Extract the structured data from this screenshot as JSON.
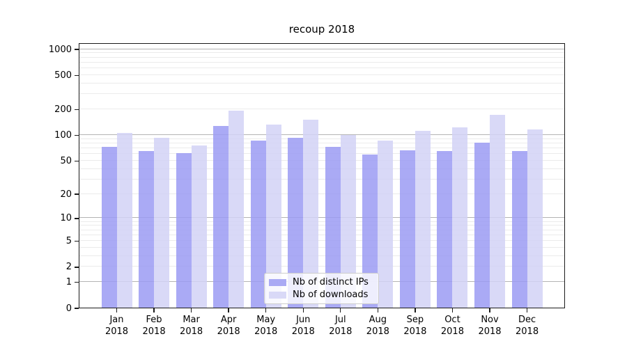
{
  "chart_data": {
    "type": "bar",
    "title": "recoup 2018",
    "categories": [
      "Jan",
      "Feb",
      "Mar",
      "Apr",
      "May",
      "Jun",
      "Jul",
      "Aug",
      "Sep",
      "Oct",
      "Nov",
      "Dec"
    ],
    "category_year": "2018",
    "series": [
      {
        "name": "Nb of distinct IPs",
        "color": "rgba(155,155,243,0.85)",
        "legend_color": "#aaaaf4",
        "values": [
          72,
          64,
          61,
          127,
          86,
          93,
          72,
          59,
          66,
          64,
          81,
          64
        ]
      },
      {
        "name": "Nb of downloads",
        "color": "rgba(210,210,246,0.85)",
        "legend_color": "#d9d9f7",
        "values": [
          105,
          92,
          75,
          193,
          131,
          151,
          100,
          86,
          112,
          122,
          172,
          116
        ]
      }
    ],
    "y_scale": "log1p",
    "y_ticks": [
      0,
      1,
      2,
      5,
      10,
      20,
      50,
      100,
      200,
      500,
      1000
    ],
    "y_major_gridlines": [
      1,
      10,
      100,
      1000
    ],
    "ylim": [
      0,
      1186
    ],
    "grid": true,
    "legend_position": "lower center",
    "colors": {
      "major_grid": "#b3b3b3",
      "minor_grid": "#ebebeb",
      "spine": "#1a1a1a",
      "text": "#000000"
    }
  }
}
